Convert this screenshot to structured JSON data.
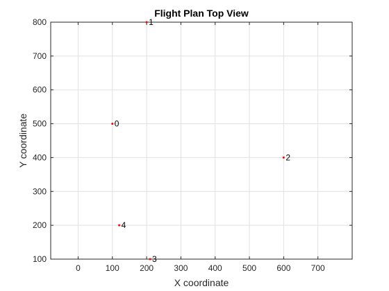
{
  "chart_data": {
    "type": "scatter",
    "title": "Flight Plan Top View",
    "xlabel": "X coordinate",
    "ylabel": "Y coordinate",
    "xlim": [
      -80,
      800
    ],
    "ylim": [
      100,
      800
    ],
    "xticks": [
      0,
      100,
      200,
      300,
      400,
      500,
      600,
      700
    ],
    "yticks": [
      100,
      200,
      300,
      400,
      500,
      600,
      700,
      800
    ],
    "grid": true,
    "marker_color": "#ff0000",
    "points": [
      {
        "label": "0",
        "x": 100,
        "y": 500
      },
      {
        "label": "1",
        "x": 200,
        "y": 800
      },
      {
        "label": "2",
        "x": 600,
        "y": 400
      },
      {
        "label": "3",
        "x": 210,
        "y": 100
      },
      {
        "label": "4",
        "x": 120,
        "y": 200
      }
    ]
  }
}
